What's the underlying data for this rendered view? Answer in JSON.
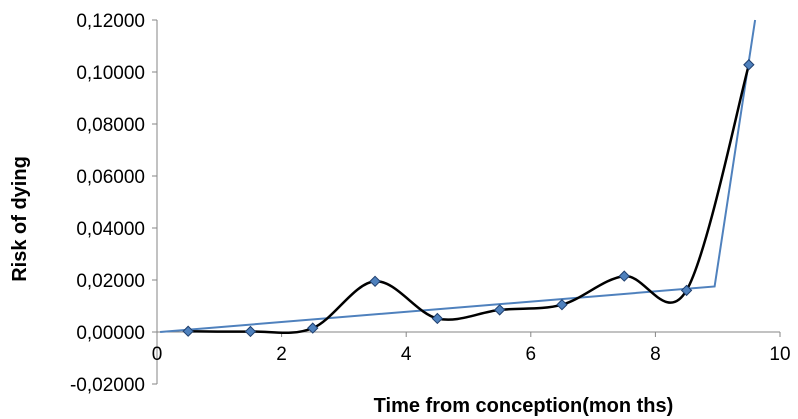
{
  "chart_data": {
    "type": "scatter",
    "title": "",
    "xlabel": "Time from conception(mon ths)",
    "ylabel": "Risk of dying",
    "xlim": [
      0,
      10
    ],
    "ylim": [
      -0.02,
      0.12
    ],
    "x_ticks": [
      0,
      2,
      4,
      6,
      8,
      10
    ],
    "x_tick_labels": [
      "0",
      "2",
      "4",
      "6",
      "8",
      "10"
    ],
    "y_ticks": [
      -0.02,
      0,
      0.02,
      0.04,
      0.06,
      0.08,
      0.1,
      0.12
    ],
    "y_tick_labels": [
      "-0,02000",
      "0,00000",
      "0,02000",
      "0,04000",
      "0,06000",
      "0,08000",
      "0,10000",
      "0,12000"
    ],
    "grid": false,
    "legend": "none",
    "series": [
      {
        "style": "smoothed line with diamond markers",
        "line_color": "#000000",
        "marker_color": "#4f81bd",
        "points": [
          {
            "x": 0.5,
            "y": 0.0003
          },
          {
            "x": 1.5,
            "y": 0.0002
          },
          {
            "x": 2.5,
            "y": 0.0015
          },
          {
            "x": 3.5,
            "y": 0.0195
          },
          {
            "x": 4.5,
            "y": 0.0052
          },
          {
            "x": 5.5,
            "y": 0.0085
          },
          {
            "x": 6.5,
            "y": 0.0105
          },
          {
            "x": 7.5,
            "y": 0.0215
          },
          {
            "x": 8.5,
            "y": 0.016
          },
          {
            "x": 9.5,
            "y": 0.1028
          }
        ]
      },
      {
        "style": "piecewise linear trend",
        "line_color": "#4f81bd",
        "points": [
          {
            "x": 0.05,
            "y": 0.0
          },
          {
            "x": 8.95,
            "y": 0.0175
          },
          {
            "x": 9.6,
            "y": 0.12
          }
        ]
      }
    ]
  }
}
